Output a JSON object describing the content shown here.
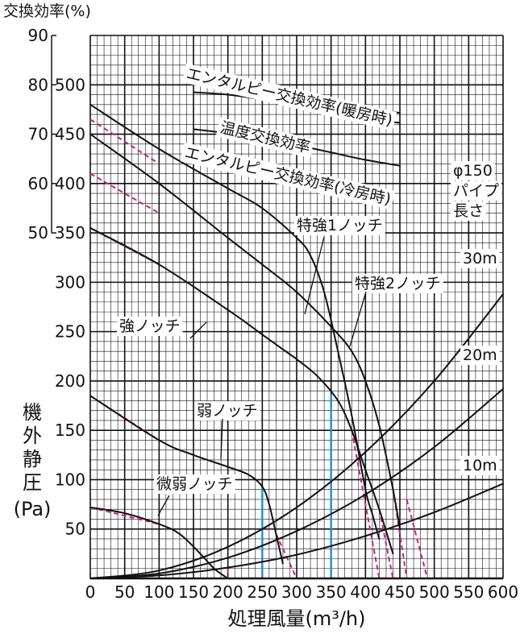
{
  "chart_data": {
    "type": "line",
    "title": "",
    "xlabel": "処理風量(m³/h)",
    "ylabel": "機外静圧(Pa)",
    "y2label": "交換効率(%)",
    "xlim": [
      0,
      600
    ],
    "ylim": [
      0,
      550
    ],
    "y2lim": [
      50,
      90
    ],
    "grid": true,
    "x_ticks": [
      "0",
      "50",
      "100",
      "150",
      "200",
      "250",
      "300",
      "350",
      "400",
      "450",
      "500",
      "550",
      "600"
    ],
    "y_ticks": [
      "50",
      "100",
      "150",
      "200",
      "250",
      "300",
      "350",
      "400",
      "450",
      "500"
    ],
    "y2_ticks": [
      "50",
      "60",
      "70",
      "80",
      "90"
    ],
    "pipe_note": [
      "φ150",
      "パイプ",
      "長さ"
    ],
    "series": [
      {
        "name": "特強1ノッチ",
        "kind": "fan",
        "x": [
          0,
          100,
          200,
          250,
          300,
          320,
          340,
          360,
          380,
          400,
          410,
          420
        ],
        "y": [
          480,
          435,
          395,
          375,
          345,
          327,
          290,
          230,
          165,
          90,
          65,
          40
        ]
      },
      {
        "name": "特強2ノッチ",
        "kind": "fan",
        "x": [
          0,
          100,
          200,
          250,
          300,
          350,
          380,
          400,
          420,
          440,
          450
        ],
        "y": [
          450,
          400,
          345,
          318,
          290,
          255,
          230,
          200,
          155,
          90,
          50
        ]
      },
      {
        "name": "強ノッチ",
        "kind": "fan",
        "x": [
          0,
          100,
          200,
          250,
          280,
          300,
          330,
          360,
          380,
          400,
          420,
          440
        ],
        "y": [
          355,
          318,
          272,
          247,
          232,
          222,
          205,
          180,
          150,
          110,
          70,
          25
        ]
      },
      {
        "name": "弱ノッチ",
        "kind": "fan",
        "x": [
          0,
          100,
          150,
          200,
          230,
          250,
          260,
          270,
          280
        ],
        "y": [
          185,
          140,
          125,
          113,
          105,
          93,
          75,
          45,
          15
        ]
      },
      {
        "name": "微弱ノッチ",
        "kind": "fan",
        "x": [
          0,
          50,
          100,
          130,
          160,
          180,
          200
        ],
        "y": [
          72,
          66,
          55,
          45,
          25,
          10,
          0
        ]
      },
      {
        "name": "30m",
        "kind": "duct",
        "x": [
          0,
          100,
          200,
          300,
          400,
          500,
          600
        ],
        "y": [
          0,
          8,
          32,
          72,
          128,
          200,
          288
        ]
      },
      {
        "name": "20m",
        "kind": "duct",
        "x": [
          0,
          100,
          200,
          300,
          400,
          500,
          600
        ],
        "y": [
          0,
          5,
          21,
          48,
          85,
          133,
          192
        ]
      },
      {
        "name": "10m",
        "kind": "duct",
        "x": [
          0,
          100,
          200,
          300,
          400,
          500,
          600
        ],
        "y": [
          0,
          3,
          11,
          24,
          43,
          67,
          96
        ]
      },
      {
        "name": "エンタルピー交換効率(暖房時)",
        "kind": "efficiency",
        "x": [
          150,
          200,
          250,
          300,
          350,
          400,
          450
        ],
        "y": [
          80.5,
          80.2,
          79.6,
          78.5,
          77.0,
          75.5,
          74.3
        ]
      },
      {
        "name": "温度交換効率",
        "kind": "efficiency",
        "x": [
          150,
          200,
          250,
          300,
          350,
          400,
          450
        ],
        "y": [
          78.5,
          78.0,
          77.0,
          75.7,
          74.2,
          73.0,
          72.3
        ]
      },
      {
        "name": "エンタルピー交換効率(冷房時)",
        "kind": "efficiency",
        "x": [
          150,
          200,
          250,
          300,
          350,
          400,
          450
        ],
        "y": [
          71.0,
          70.2,
          69.2,
          67.8,
          66.3,
          64.8,
          63.6
        ]
      }
    ],
    "annotations": [
      {
        "text": "エンタルピー交換効率(暖房時)"
      },
      {
        "text": "温度交換効率"
      },
      {
        "text": "エンタルピー交換効率(冷房時)"
      },
      {
        "text": "特強1ノッチ"
      },
      {
        "text": "特強2ノッチ"
      },
      {
        "text": "強ノッチ"
      },
      {
        "text": "弱ノッチ"
      },
      {
        "text": "微弱ノッチ"
      },
      {
        "text": "30m"
      },
      {
        "text": "20m"
      },
      {
        "text": "10m"
      }
    ],
    "colors": {
      "curve": "#111111",
      "extension": "#cc2277",
      "marker": "#1f8fcf",
      "grid": "#111111"
    }
  }
}
